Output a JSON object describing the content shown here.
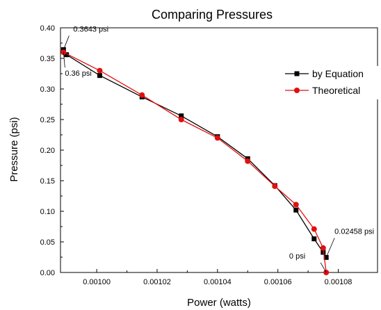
{
  "chart_data": {
    "type": "line",
    "title": "Comparing Pressures",
    "xlabel": "Power (watts)",
    "ylabel": "Pressure (psi)",
    "xlim": [
      0.000988,
      0.001093
    ],
    "ylim": [
      0.0,
      0.4
    ],
    "x_ticks": [
      0.001,
      0.00102,
      0.00104,
      0.00106,
      0.00108
    ],
    "x_tick_labels": [
      "0.00100",
      "0.00102",
      "0.00104",
      "0.00106",
      "0.00108"
    ],
    "y_ticks": [
      0.0,
      0.05,
      0.1,
      0.15,
      0.2,
      0.25,
      0.3,
      0.35,
      0.4
    ],
    "y_tick_labels": [
      "0.00",
      "0.05",
      "0.10",
      "0.15",
      "0.20",
      "0.25",
      "0.30",
      "0.35",
      "0.40"
    ],
    "grid": false,
    "legend_position": "top-right",
    "series": [
      {
        "name": "by Equation",
        "color": "#000000",
        "marker": "square",
        "x": [
          0.000989,
          0.00099,
          0.001001,
          0.001015,
          0.001028,
          0.00104,
          0.00105,
          0.001059,
          0.001066,
          0.001072,
          0.001075,
          0.001076
        ],
        "y": [
          0.3643,
          0.356,
          0.322,
          0.287,
          0.256,
          0.222,
          0.186,
          0.142,
          0.102,
          0.055,
          0.033,
          0.02458
        ]
      },
      {
        "name": "Theoretical",
        "color": "#e01010",
        "marker": "circle",
        "x": [
          0.000989,
          0.001001,
          0.001015,
          0.001028,
          0.00104,
          0.00105,
          0.001059,
          0.001066,
          0.001072,
          0.001075,
          0.001076
        ],
        "y": [
          0.36,
          0.33,
          0.29,
          0.25,
          0.22,
          0.182,
          0.141,
          0.111,
          0.071,
          0.04,
          0.0
        ]
      }
    ],
    "annotations": [
      {
        "text": "0.3643 psi",
        "x": 0.000989,
        "y": 0.3643
      },
      {
        "text": "0.36 psi",
        "x": 0.000989,
        "y": 0.36
      },
      {
        "text": "0.02458 psi",
        "x": 0.001076,
        "y": 0.02458
      },
      {
        "text": "0 psi",
        "x": 0.001076,
        "y": 0.0
      }
    ]
  }
}
